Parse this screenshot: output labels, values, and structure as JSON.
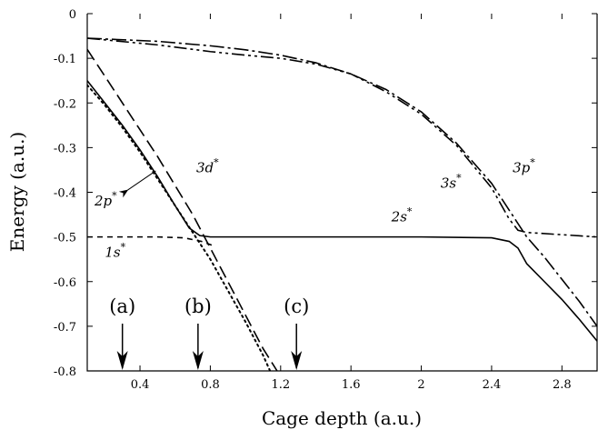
{
  "chart_data": {
    "type": "line",
    "xlabel": "Cage depth (a.u.)",
    "ylabel": "Energy (a.u.)",
    "xlim": [
      0.1,
      3.0
    ],
    "ylim": [
      -0.8,
      0.0
    ],
    "xticks": [
      0.4,
      0.8,
      1.2,
      1.6,
      2.0,
      2.4,
      2.8
    ],
    "xtick_labels": [
      "0.4",
      "0.8",
      "1.2",
      "1.6",
      "2",
      "2.4",
      "2.8"
    ],
    "yticks": [
      0,
      -0.1,
      -0.2,
      -0.3,
      -0.4,
      -0.5,
      -0.6,
      -0.7,
      -0.8
    ],
    "ytick_labels": [
      "0",
      "-0.1",
      "-0.2",
      "-0.3",
      "-0.4",
      "-0.5",
      "-0.6",
      "-0.7",
      "-0.8"
    ],
    "grid": false,
    "series": [
      {
        "name": "1s*",
        "style": "dashed-short",
        "x": [
          0.1,
          0.5,
          0.65,
          0.75,
          0.82
        ],
        "y": [
          -0.5,
          -0.5,
          -0.502,
          -0.51,
          -0.52
        ]
      },
      {
        "name": "2s*",
        "style": "solid",
        "x": [
          0.1,
          0.2,
          0.3,
          0.4,
          0.5,
          0.6,
          0.68,
          0.74,
          0.8,
          1.2,
          1.6,
          2.0,
          2.4,
          2.5,
          2.55,
          2.6,
          2.7,
          2.8,
          2.9,
          3.0
        ],
        "y": [
          -0.15,
          -0.2,
          -0.25,
          -0.305,
          -0.365,
          -0.43,
          -0.48,
          -0.497,
          -0.5,
          -0.5,
          -0.5,
          -0.5,
          -0.502,
          -0.51,
          -0.525,
          -0.56,
          -0.6,
          -0.64,
          -0.685,
          -0.733
        ]
      },
      {
        "name": "2p*",
        "style": "dotted",
        "x": [
          0.1,
          0.2,
          0.3,
          0.4,
          0.5,
          0.6,
          0.7,
          0.8,
          0.9,
          1.0,
          1.1,
          1.14
        ],
        "y": [
          -0.16,
          -0.205,
          -0.255,
          -0.31,
          -0.37,
          -0.43,
          -0.49,
          -0.55,
          -0.62,
          -0.69,
          -0.765,
          -0.8
        ]
      },
      {
        "name": "3d*",
        "style": "dashed-long",
        "x": [
          0.1,
          0.2,
          0.3,
          0.4,
          0.5,
          0.6,
          0.7,
          0.8,
          0.9,
          1.0,
          1.1,
          1.18
        ],
        "y": [
          -0.08,
          -0.14,
          -0.2,
          -0.26,
          -0.32,
          -0.385,
          -0.45,
          -0.525,
          -0.6,
          -0.675,
          -0.75,
          -0.8
        ]
      },
      {
        "name": "3s*",
        "style": "dash-dot",
        "x": [
          0.1,
          0.5,
          0.8,
          1.0,
          1.2,
          1.4,
          1.6,
          1.8,
          2.0,
          2.2,
          2.4,
          2.5,
          2.55,
          2.6,
          2.7,
          2.8,
          2.9,
          3.0
        ],
        "y": [
          -0.055,
          -0.062,
          -0.072,
          -0.081,
          -0.093,
          -0.11,
          -0.135,
          -0.17,
          -0.22,
          -0.29,
          -0.38,
          -0.44,
          -0.47,
          -0.5,
          -0.545,
          -0.595,
          -0.645,
          -0.7
        ]
      },
      {
        "name": "3p*",
        "style": "dash-dot-dot",
        "x": [
          0.1,
          0.5,
          0.8,
          1.0,
          1.2,
          1.4,
          1.6,
          1.8,
          2.0,
          2.2,
          2.4,
          2.5,
          2.55,
          2.6,
          2.8,
          3.0
        ],
        "y": [
          -0.055,
          -0.07,
          -0.085,
          -0.093,
          -0.1,
          -0.113,
          -0.135,
          -0.175,
          -0.225,
          -0.295,
          -0.39,
          -0.46,
          -0.485,
          -0.49,
          -0.495,
          -0.5
        ]
      }
    ],
    "curve_labels": [
      {
        "series": "1s*",
        "base": "1s",
        "sup": "*",
        "x": 0.2,
        "y": -0.545
      },
      {
        "series": "2s*",
        "base": "2s",
        "sup": "*",
        "x": 1.83,
        "y": -0.465
      },
      {
        "series": "2p*",
        "base": "2p",
        "sup": "*",
        "x": 0.0,
        "y": -0.43
      },
      {
        "series": "3d*",
        "base": "3d",
        "sup": "*",
        "x": 0.72,
        "y": -0.355
      },
      {
        "series": "3s*",
        "base": "3s",
        "sup": "*",
        "x": 2.11,
        "y": -0.39
      },
      {
        "series": "3p*",
        "base": "3p",
        "sup": "*",
        "x": 2.52,
        "y": -0.355
      }
    ],
    "annotations": [
      {
        "type": "arrow",
        "from_label": "2p*",
        "x1": 0.33,
        "y1": -0.395,
        "x2": 0.5,
        "y2": -0.35
      }
    ],
    "markers": [
      {
        "label": "(a)",
        "x": 0.3
      },
      {
        "label": "(b)",
        "x": 0.73
      },
      {
        "label": "(c)",
        "x": 1.29
      }
    ]
  }
}
